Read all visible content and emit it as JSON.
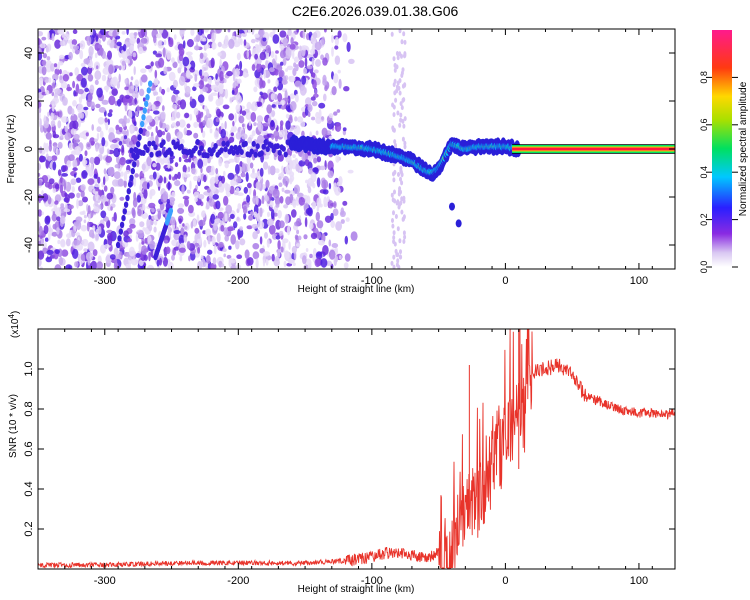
{
  "title": "C2E6.2026.039.01.38.G06",
  "chart_data": [
    {
      "type": "heatmap",
      "xlabel": "Height of straight line (km)",
      "ylabel": "Frequency (Hz)",
      "xlim": [
        -350,
        127
      ],
      "ylim": [
        -50,
        50
      ],
      "xticks": [
        -300,
        -200,
        -100,
        0,
        100
      ],
      "yticks": [
        -40,
        -20,
        0,
        20,
        40
      ],
      "colorbar": {
        "label": "Normalized spectral amplitude",
        "range": [
          0,
          1
        ],
        "ticks": [
          "0.0",
          "0.2",
          "0.4",
          "0.6",
          "0.8"
        ]
      },
      "ridge": {
        "x": [
          -160,
          -140,
          -120,
          -100,
          -80,
          -70,
          -60,
          -55,
          -50,
          -45,
          -40,
          -30,
          -20,
          -10,
          0,
          10,
          127
        ],
        "y": [
          3,
          1,
          1,
          0,
          -3,
          -5,
          -9,
          -10,
          -8,
          -3,
          2,
          0,
          1,
          1,
          1,
          0,
          0
        ]
      }
    },
    {
      "type": "line",
      "xlabel": "Height of straight line (km)",
      "ylabel": "SNR (10 * v/v)",
      "ylabel_exponent": "(x10",
      "exponent_power": "4",
      "exponent_close": ")",
      "xlim": [
        -350,
        127
      ],
      "ylim": [
        0,
        1.2
      ],
      "xticks": [
        -300,
        -200,
        -100,
        0,
        100
      ],
      "yticks": [
        "0.2",
        "0.4",
        "0.6",
        "0.8",
        "1.0"
      ],
      "color": "#e8332a",
      "series": [
        {
          "x": [
            -350,
            -300,
            -250,
            -200,
            -150,
            -120,
            -100,
            -90,
            -80,
            -70,
            -60,
            -50,
            -45,
            -40,
            -35,
            -30,
            -25,
            -20,
            -15,
            -10,
            -5,
            0,
            5,
            10,
            20,
            30,
            40,
            50,
            55,
            60,
            70,
            80,
            90,
            100,
            110,
            120,
            127
          ],
          "values": [
            0.02,
            0.02,
            0.03,
            0.03,
            0.03,
            0.04,
            0.06,
            0.08,
            0.08,
            0.07,
            0.05,
            0.08,
            0.15,
            0.28,
            0.4,
            0.45,
            0.5,
            0.55,
            0.62,
            0.7,
            0.76,
            0.82,
            0.9,
            0.96,
            0.98,
            1.0,
            1.02,
            0.97,
            0.92,
            0.86,
            0.84,
            0.81,
            0.79,
            0.78,
            0.78,
            0.77,
            0.78
          ]
        }
      ]
    }
  ]
}
